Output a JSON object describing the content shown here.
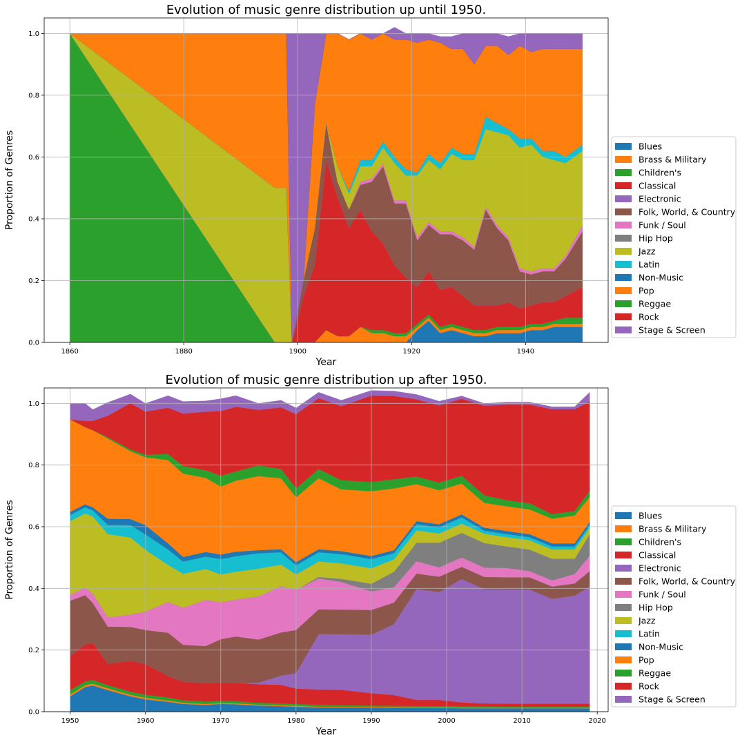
{
  "colors": {
    "Blues": "#1f77b4",
    "Brass & Military": "#ff7f0e",
    "Children's": "#2ca02c",
    "Classical": "#d62728",
    "Electronic": "#9467bd",
    "Folk, World, & Country": "#8c564b",
    "Funk / Soul": "#e377c2",
    "Hip Hop": "#7f7f7f",
    "Jazz": "#bcbd22",
    "Latin": "#17becf",
    "Non-Music": "#1f77b4",
    "Pop": "#ff7f0e",
    "Reggae": "#2ca02c",
    "Rock": "#d62728",
    "Stage & Screen": "#9467bd"
  },
  "chart_data": [
    {
      "type": "area",
      "title": "Evolution of music genre distribution up until 1950.",
      "xlabel": "Year",
      "ylabel": "Proportion of Genres",
      "xlim": [
        1855.5,
        1954.5
      ],
      "ylim": [
        0,
        1.05
      ],
      "xticks": [
        "1860",
        "1880",
        "1900",
        "1920",
        "1940"
      ],
      "yticks": [
        "0.0",
        "0.2",
        "0.4",
        "0.6",
        "0.8",
        "1.0"
      ],
      "grid": true,
      "legend_position": "outside-right",
      "x": [
        1860,
        1896,
        1898,
        1899,
        1901,
        1903,
        1905,
        1907,
        1909,
        1911,
        1913,
        1915,
        1917,
        1919,
        1921,
        1923,
        1925,
        1927,
        1929,
        1931,
        1933,
        1935,
        1937,
        1939,
        1941,
        1943,
        1945,
        1947,
        1950
      ],
      "series": [
        {
          "name": "Blues",
          "values": [
            0,
            0,
            0,
            0,
            0,
            0,
            0,
            0,
            0,
            0,
            0,
            0,
            0,
            0,
            0.04,
            0.07,
            0.03,
            0.04,
            0.03,
            0.02,
            0.02,
            0.03,
            0.03,
            0.03,
            0.04,
            0.04,
            0.05,
            0.05,
            0.05
          ]
        },
        {
          "name": "Brass & Military",
          "values": [
            0,
            0,
            0,
            0,
            0,
            0,
            0.04,
            0.02,
            0.02,
            0.05,
            0.03,
            0.03,
            0.02,
            0.02,
            0.01,
            0.01,
            0.01,
            0.01,
            0.01,
            0.01,
            0.01,
            0.01,
            0.01,
            0.01,
            0.01,
            0.01,
            0.01,
            0.01,
            0.01
          ]
        },
        {
          "name": "Children's",
          "values": [
            1.0,
            0,
            0,
            0,
            0,
            0,
            0,
            0,
            0,
            0,
            0.01,
            0.01,
            0.01,
            0.01,
            0.01,
            0.01,
            0.01,
            0.01,
            0.01,
            0.01,
            0.01,
            0.01,
            0.01,
            0.01,
            0.01,
            0.01,
            0.01,
            0.02,
            0.02
          ]
        },
        {
          "name": "Classical",
          "values": [
            0,
            0,
            0,
            0,
            0.15,
            0.25,
            0.55,
            0.45,
            0.35,
            0.38,
            0.32,
            0.28,
            0.22,
            0.18,
            0.12,
            0.14,
            0.12,
            0.12,
            0.1,
            0.08,
            0.08,
            0.07,
            0.08,
            0.06,
            0.06,
            0.07,
            0.06,
            0.07,
            0.1
          ]
        },
        {
          "name": "Electronic",
          "values": [
            0,
            0,
            0,
            0,
            0,
            0,
            0,
            0,
            0,
            0,
            0,
            0,
            0,
            0,
            0,
            0,
            0,
            0,
            0,
            0,
            0,
            0,
            0,
            0,
            0,
            0,
            0,
            0,
            0
          ]
        },
        {
          "name": "Folk, World, & Country",
          "values": [
            0,
            0,
            0,
            0,
            0.05,
            0.12,
            0.12,
            0.05,
            0.06,
            0.08,
            0.16,
            0.25,
            0.2,
            0.24,
            0.15,
            0.15,
            0.18,
            0.17,
            0.18,
            0.18,
            0.31,
            0.25,
            0.2,
            0.12,
            0.1,
            0.1,
            0.1,
            0.12,
            0.18
          ]
        },
        {
          "name": "Funk / Soul",
          "values": [
            0,
            0,
            0,
            0,
            0,
            0,
            0,
            0,
            0,
            0.01,
            0.01,
            0.01,
            0.01,
            0.01,
            0.01,
            0.01,
            0.01,
            0.01,
            0.01,
            0.01,
            0.01,
            0.01,
            0.01,
            0.01,
            0.01,
            0.01,
            0.01,
            0.01,
            0.02
          ]
        },
        {
          "name": "Hip Hop",
          "values": [
            0,
            0,
            0,
            0,
            0,
            0,
            0,
            0,
            0,
            0,
            0,
            0,
            0,
            0,
            0,
            0,
            0,
            0,
            0,
            0,
            0,
            0,
            0,
            0,
            0,
            0,
            0,
            0,
            0
          ]
        },
        {
          "name": "Jazz",
          "values": [
            0,
            0.5,
            0.5,
            0,
            0,
            0,
            0,
            0.05,
            0.05,
            0.05,
            0.04,
            0.05,
            0.12,
            0.08,
            0.2,
            0.2,
            0.2,
            0.25,
            0.25,
            0.28,
            0.25,
            0.3,
            0.33,
            0.39,
            0.41,
            0.36,
            0.35,
            0.3,
            0.24
          ]
        },
        {
          "name": "Latin",
          "values": [
            0,
            0,
            0,
            0,
            0,
            0,
            0,
            0,
            0.01,
            0.02,
            0.02,
            0.02,
            0.02,
            0.02,
            0.01,
            0.02,
            0.02,
            0.02,
            0.02,
            0.02,
            0.04,
            0.03,
            0.02,
            0.03,
            0.02,
            0.02,
            0.03,
            0.02,
            0.02
          ]
        },
        {
          "name": "Non-Music",
          "values": [
            0,
            0,
            0,
            0,
            0,
            0,
            0,
            0,
            0,
            0,
            0,
            0,
            0,
            0,
            0,
            0,
            0,
            0,
            0,
            0,
            0,
            0,
            0,
            0,
            0,
            0,
            0,
            0,
            0
          ]
        },
        {
          "name": "Pop",
          "values": [
            0,
            0.5,
            0.5,
            0,
            0,
            0.4,
            0.29,
            0.43,
            0.49,
            0.41,
            0.39,
            0.35,
            0.38,
            0.42,
            0.42,
            0.37,
            0.39,
            0.32,
            0.34,
            0.29,
            0.23,
            0.25,
            0.24,
            0.3,
            0.28,
            0.33,
            0.33,
            0.35,
            0.31
          ]
        },
        {
          "name": "Reggae",
          "values": [
            0,
            0,
            0,
            0,
            0,
            0,
            0,
            0,
            0,
            0,
            0,
            0,
            0,
            0,
            0,
            0,
            0,
            0,
            0,
            0,
            0,
            0,
            0,
            0,
            0,
            0,
            0,
            0,
            0
          ]
        },
        {
          "name": "Rock",
          "values": [
            0,
            0,
            0,
            0,
            0,
            0,
            0,
            0,
            0,
            0,
            0,
            0,
            0,
            0,
            0,
            0,
            0,
            0,
            0,
            0,
            0,
            0,
            0,
            0,
            0,
            0,
            0,
            0,
            0
          ]
        },
        {
          "name": "Stage & Screen",
          "values": [
            0,
            0,
            0,
            1.0,
            0.8,
            0.23,
            0,
            0,
            0,
            0,
            0.02,
            0,
            0.04,
            0.02,
            0.03,
            0.02,
            0.02,
            0.04,
            0.05,
            0.1,
            0.04,
            0.04,
            0.06,
            0.04,
            0.06,
            0.05,
            0.05,
            0.05,
            0.05
          ]
        }
      ]
    },
    {
      "type": "area",
      "title": "Evolution of music genre distribution up after 1950.",
      "xlabel": "Year",
      "ylabel": "Proportion of Genres",
      "xlim": [
        1946.55,
        2021.45
      ],
      "ylim": [
        0,
        1.05
      ],
      "xticks": [
        "1950",
        "1960",
        "1970",
        "1980",
        "1990",
        "2000",
        "2010",
        "2020"
      ],
      "yticks": [
        "0.0",
        "0.2",
        "0.4",
        "0.6",
        "0.8",
        "1.0"
      ],
      "grid": true,
      "legend_position": "outside-right",
      "x": [
        1950,
        1952,
        1953,
        1955,
        1958,
        1960,
        1963,
        1965,
        1968,
        1970,
        1972,
        1975,
        1978,
        1980,
        1983,
        1986,
        1990,
        1993,
        1996,
        1999,
        2002,
        2005,
        2008,
        2011,
        2014,
        2017,
        2019
      ],
      "series": [
        {
          "name": "Blues",
          "values": [
            0.05,
            0.08,
            0.085,
            0.07,
            0.05,
            0.04,
            0.032,
            0.025,
            0.022,
            0.025,
            0.024,
            0.02,
            0.018,
            0.016,
            0.014,
            0.014,
            0.014,
            0.013,
            0.012,
            0.012,
            0.011,
            0.011,
            0.011,
            0.011,
            0.011,
            0.011,
            0.011
          ]
        },
        {
          "name": "Brass & Military",
          "values": [
            0.006,
            0.006,
            0.006,
            0.006,
            0.005,
            0.005,
            0.004,
            0.004,
            0.003,
            0.003,
            0.003,
            0.003,
            0.003,
            0.003,
            0.002,
            0.002,
            0.002,
            0.002,
            0.002,
            0.002,
            0.002,
            0.002,
            0.002,
            0.002,
            0.002,
            0.002,
            0.002
          ]
        },
        {
          "name": "Children's",
          "values": [
            0.014,
            0.012,
            0.012,
            0.01,
            0.01,
            0.01,
            0.01,
            0.008,
            0.008,
            0.007,
            0.007,
            0.006,
            0.006,
            0.006,
            0.006,
            0.005,
            0.004,
            0.004,
            0.004,
            0.004,
            0.004,
            0.004,
            0.003,
            0.003,
            0.003,
            0.003,
            0.003
          ]
        },
        {
          "name": "Classical",
          "values": [
            0.11,
            0.12,
            0.12,
            0.07,
            0.1,
            0.1,
            0.07,
            0.06,
            0.06,
            0.06,
            0.06,
            0.06,
            0.06,
            0.05,
            0.05,
            0.05,
            0.04,
            0.035,
            0.02,
            0.02,
            0.013,
            0.01,
            0.01,
            0.01,
            0.01,
            0.01,
            0.01
          ]
        },
        {
          "name": "Electronic",
          "values": [
            0,
            0,
            0,
            0,
            0,
            0,
            0,
            0,
            0,
            0,
            0,
            0.005,
            0.03,
            0.05,
            0.18,
            0.18,
            0.19,
            0.23,
            0.36,
            0.35,
            0.4,
            0.37,
            0.37,
            0.37,
            0.34,
            0.35,
            0.38
          ]
        },
        {
          "name": "Folk, World, & Country",
          "values": [
            0.18,
            0.16,
            0.13,
            0.12,
            0.11,
            0.11,
            0.14,
            0.12,
            0.12,
            0.14,
            0.15,
            0.14,
            0.14,
            0.14,
            0.08,
            0.08,
            0.08,
            0.07,
            0.05,
            0.05,
            0.04,
            0.04,
            0.04,
            0.04,
            0.04,
            0.04,
            0.05
          ]
        },
        {
          "name": "Funk / Soul",
          "values": [
            0.018,
            0.025,
            0.03,
            0.03,
            0.04,
            0.06,
            0.1,
            0.12,
            0.15,
            0.12,
            0.12,
            0.14,
            0.15,
            0.13,
            0.1,
            0.09,
            0.06,
            0.05,
            0.04,
            0.03,
            0.03,
            0.03,
            0.03,
            0.02,
            0.02,
            0.03,
            0.05
          ]
        },
        {
          "name": "Hip Hop",
          "values": [
            0,
            0,
            0,
            0,
            0,
            0,
            0,
            0,
            0,
            0,
            0,
            0,
            0,
            0,
            0.005,
            0.01,
            0.025,
            0.05,
            0.06,
            0.08,
            0.08,
            0.08,
            0.07,
            0.07,
            0.07,
            0.05,
            0.07
          ]
        },
        {
          "name": "Jazz",
          "values": [
            0.24,
            0.24,
            0.25,
            0.27,
            0.25,
            0.2,
            0.12,
            0.11,
            0.1,
            0.09,
            0.09,
            0.09,
            0.07,
            0.05,
            0.05,
            0.05,
            0.05,
            0.04,
            0.04,
            0.03,
            0.03,
            0.03,
            0.03,
            0.03,
            0.03,
            0.03,
            0.02
          ]
        },
        {
          "name": "Latin",
          "values": [
            0.02,
            0.02,
            0.02,
            0.03,
            0.04,
            0.05,
            0.05,
            0.04,
            0.04,
            0.05,
            0.05,
            0.05,
            0.04,
            0.03,
            0.03,
            0.03,
            0.03,
            0.02,
            0.02,
            0.02,
            0.02,
            0.01,
            0.01,
            0.01,
            0.01,
            0.01,
            0.01
          ]
        },
        {
          "name": "Non-Music",
          "values": [
            0.01,
            0.01,
            0.01,
            0.02,
            0.02,
            0.03,
            0.02,
            0.015,
            0.015,
            0.015,
            0.015,
            0.01,
            0.01,
            0.01,
            0.01,
            0.01,
            0.01,
            0.01,
            0.01,
            0.01,
            0.01,
            0.01,
            0.01,
            0.01,
            0.01,
            0.01,
            0.01
          ]
        },
        {
          "name": "Pop",
          "values": [
            0.3,
            0.25,
            0.25,
            0.26,
            0.22,
            0.22,
            0.27,
            0.27,
            0.24,
            0.22,
            0.23,
            0.24,
            0.23,
            0.21,
            0.23,
            0.2,
            0.21,
            0.2,
            0.12,
            0.11,
            0.1,
            0.08,
            0.08,
            0.08,
            0.08,
            0.09,
            0.08
          ]
        },
        {
          "name": "Reggae",
          "values": [
            0,
            0,
            0,
            0.004,
            0.006,
            0.008,
            0.02,
            0.025,
            0.025,
            0.035,
            0.03,
            0.035,
            0.03,
            0.03,
            0.03,
            0.03,
            0.03,
            0.03,
            0.025,
            0.025,
            0.025,
            0.025,
            0.02,
            0.02,
            0.015,
            0.015,
            0.02
          ]
        },
        {
          "name": "Rock",
          "values": [
            0,
            0.02,
            0.03,
            0.07,
            0.15,
            0.14,
            0.15,
            0.17,
            0.19,
            0.21,
            0.21,
            0.18,
            0.2,
            0.24,
            0.23,
            0.24,
            0.28,
            0.27,
            0.25,
            0.25,
            0.25,
            0.29,
            0.31,
            0.32,
            0.34,
            0.33,
            0.29
          ]
        },
        {
          "name": "Stage & Screen",
          "values": [
            0.052,
            0.057,
            0.037,
            0.043,
            0.029,
            0.027,
            0.039,
            0.039,
            0.035,
            0.04,
            0.036,
            0.021,
            0.023,
            0.02,
            0.019,
            0.019,
            0.017,
            0.016,
            0.016,
            0.014,
            0.009,
            0.008,
            0.008,
            0.008,
            0.008,
            0.008,
            0.03
          ]
        }
      ]
    }
  ]
}
